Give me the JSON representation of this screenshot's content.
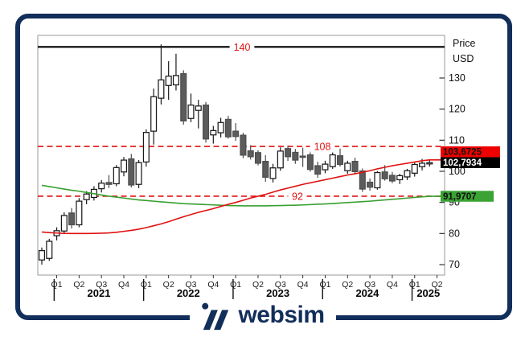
{
  "window": {
    "frame_color": "#122e5a",
    "background": "#ffffff"
  },
  "branding": {
    "logo_text": "websim",
    "logo_color": "#122e5a"
  },
  "axis_right": {
    "title_line1": "Price",
    "title_line2": "USD",
    "ticks": [
      130,
      120,
      110,
      100,
      90,
      80,
      70
    ]
  },
  "x_axis": {
    "quarter_labels": [
      "Q1",
      "Q2",
      "Q3",
      "Q4",
      "Q1",
      "Q2",
      "Q3",
      "Q4",
      "Q1",
      "Q2",
      "Q3",
      "Q4",
      "Q1",
      "Q2",
      "Q3",
      "Q4",
      "Q1",
      "Q2"
    ],
    "year_labels": [
      "2021",
      "2022",
      "2023",
      "2024",
      "2025"
    ]
  },
  "price_tags": [
    {
      "text": "103,6725",
      "value": 103.6725,
      "bg": "#ee0000",
      "fg": "#111111",
      "role": "red-ma-value"
    },
    {
      "text": "102,7934",
      "value": 102.7934,
      "bg": "#000000",
      "fg": "#ffffff",
      "role": "last-price"
    },
    {
      "text": "91,9707",
      "value": 91.9707,
      "bg": "#3aa334",
      "fg": "#111111",
      "role": "green-ma-value"
    }
  ],
  "chart_data": {
    "type": "candlestick",
    "title": "",
    "x_start": "2021-01",
    "x_end": "2025-05",
    "interval": "monthly",
    "ylim": [
      66.5,
      143.8
    ],
    "yticks": [
      70,
      80,
      90,
      100,
      110,
      120,
      130
    ],
    "grid": false,
    "up_color": "#ffffff",
    "down_color": "#5c5c5c",
    "outline_color": "#1a1a1a",
    "last_close": 102.7934,
    "levels": [
      {
        "value": 140,
        "label": "140",
        "style": "solid",
        "color": "#000000",
        "label_color": "#e01212"
      },
      {
        "value": 108,
        "label": "108",
        "style": "dashed",
        "color": "#e01212",
        "label_color": "#e01212"
      },
      {
        "value": 92,
        "label": "92",
        "style": "dashed",
        "color": "#e01212",
        "label_color": "#e01212"
      }
    ],
    "candles": [
      [
        71.5,
        75.5,
        70.0,
        74.5
      ],
      [
        72.0,
        78.3,
        71.2,
        77.5
      ],
      [
        79.3,
        82.0,
        77.8,
        80.9
      ],
      [
        80.8,
        86.8,
        79.8,
        85.8
      ],
      [
        86.6,
        88.2,
        81.6,
        82.8
      ],
      [
        82.8,
        91.4,
        82.0,
        90.4
      ],
      [
        90.9,
        93.6,
        89.4,
        92.7
      ],
      [
        91.6,
        95.2,
        90.6,
        94.2
      ],
      [
        94.4,
        97.2,
        93.2,
        96.2
      ],
      [
        96.4,
        98.8,
        94.6,
        95.8
      ],
      [
        96.0,
        102.0,
        95.2,
        101.2
      ],
      [
        99.8,
        104.6,
        98.4,
        103.6
      ],
      [
        104.0,
        105.6,
        94.8,
        95.6
      ],
      [
        95.8,
        103.6,
        94.6,
        102.8
      ],
      [
        103.0,
        113.5,
        101.5,
        112.5
      ],
      [
        112.9,
        126.6,
        108.6,
        124.0
      ],
      [
        123.5,
        140.8,
        121.5,
        129.4
      ],
      [
        127.6,
        135.4,
        123.0,
        130.6
      ],
      [
        127.8,
        137.8,
        126.0,
        130.8
      ],
      [
        131.4,
        132.5,
        115.0,
        116.2
      ],
      [
        117.0,
        125.0,
        115.8,
        121.3
      ],
      [
        119.6,
        123.0,
        113.8,
        121.0
      ],
      [
        121.3,
        122.3,
        109.2,
        110.4
      ],
      [
        111.7,
        114.6,
        108.9,
        113.1
      ],
      [
        112.4,
        117.2,
        110.9,
        115.7
      ],
      [
        116.7,
        117.8,
        110.5,
        111.1
      ],
      [
        112.9,
        115.5,
        109.8,
        111.2
      ],
      [
        111.6,
        112.4,
        104.2,
        105.2
      ],
      [
        106.6,
        108.4,
        103.8,
        104.7
      ],
      [
        106.0,
        106.8,
        101.9,
        102.6
      ],
      [
        103.2,
        105.2,
        96.6,
        98.1
      ],
      [
        97.7,
        102.4,
        96.4,
        101.1
      ],
      [
        101.1,
        107.7,
        100.2,
        106.5
      ],
      [
        107.3,
        108.3,
        103.3,
        104.7
      ],
      [
        106.1,
        107.2,
        102.4,
        103.6
      ],
      [
        104.9,
        107.6,
        101.4,
        104.6
      ],
      [
        105.3,
        106.6,
        99.9,
        100.6
      ],
      [
        101.8,
        103.1,
        97.9,
        99.1
      ],
      [
        100.5,
        103.4,
        99.4,
        102.3
      ],
      [
        101.5,
        106.2,
        100.8,
        105.3
      ],
      [
        105.0,
        107.3,
        101.5,
        102.2
      ],
      [
        100.2,
        103.4,
        99.2,
        102.6
      ],
      [
        103.2,
        104.4,
        99.0,
        99.9
      ],
      [
        100.1,
        100.9,
        93.4,
        94.3
      ],
      [
        96.5,
        97.7,
        93.8,
        94.9
      ],
      [
        94.7,
        100.1,
        94.1,
        99.6
      ],
      [
        99.8,
        102.0,
        97.0,
        97.6
      ],
      [
        98.7,
        99.8,
        96.2,
        96.9
      ],
      [
        97.3,
        99.2,
        95.9,
        98.6
      ],
      [
        98.2,
        100.8,
        97.2,
        100.2
      ],
      [
        99.4,
        102.8,
        98.3,
        102.2
      ],
      [
        101.5,
        104.0,
        100.3,
        102.6
      ],
      [
        102.4,
        103.9,
        101.5,
        102.79
      ]
    ],
    "series": [
      {
        "name": "long-ma-green",
        "color": "#37a02f",
        "last_value": 91.9707,
        "values": [
          95.5,
          95.1,
          94.7,
          94.3,
          93.9,
          93.6,
          93.2,
          92.8,
          92.4,
          92.0,
          91.7,
          91.4,
          91.1,
          90.8,
          90.6,
          90.4,
          90.2,
          90.0,
          89.8,
          89.6,
          89.5,
          89.4,
          89.3,
          89.2,
          89.1,
          89.0,
          88.95,
          88.9,
          88.9,
          88.9,
          88.9,
          88.95,
          89.0,
          89.05,
          89.1,
          89.2,
          89.3,
          89.4,
          89.5,
          89.65,
          89.8,
          89.95,
          90.1,
          90.25,
          90.4,
          90.6,
          90.8,
          91.0,
          91.2,
          91.4,
          91.6,
          91.8,
          91.97
        ]
      },
      {
        "name": "ma-red",
        "color": "#e01212",
        "last_value": 103.6725,
        "values": [
          80.5,
          80.3,
          80.15,
          80.05,
          80.0,
          80.0,
          80.0,
          80.05,
          80.1,
          80.2,
          80.4,
          80.7,
          81.0,
          81.4,
          81.9,
          82.5,
          83.1,
          83.8,
          84.6,
          85.4,
          86.1,
          86.8,
          87.4,
          88.0,
          88.7,
          89.4,
          90.0,
          90.7,
          91.4,
          92.0,
          92.6,
          93.3,
          94.0,
          94.6,
          95.2,
          95.8,
          96.3,
          96.8,
          97.3,
          97.8,
          98.3,
          98.8,
          99.2,
          99.7,
          100.2,
          100.8,
          101.3,
          101.8,
          102.2,
          102.6,
          103.0,
          103.4,
          103.6725
        ]
      }
    ]
  }
}
